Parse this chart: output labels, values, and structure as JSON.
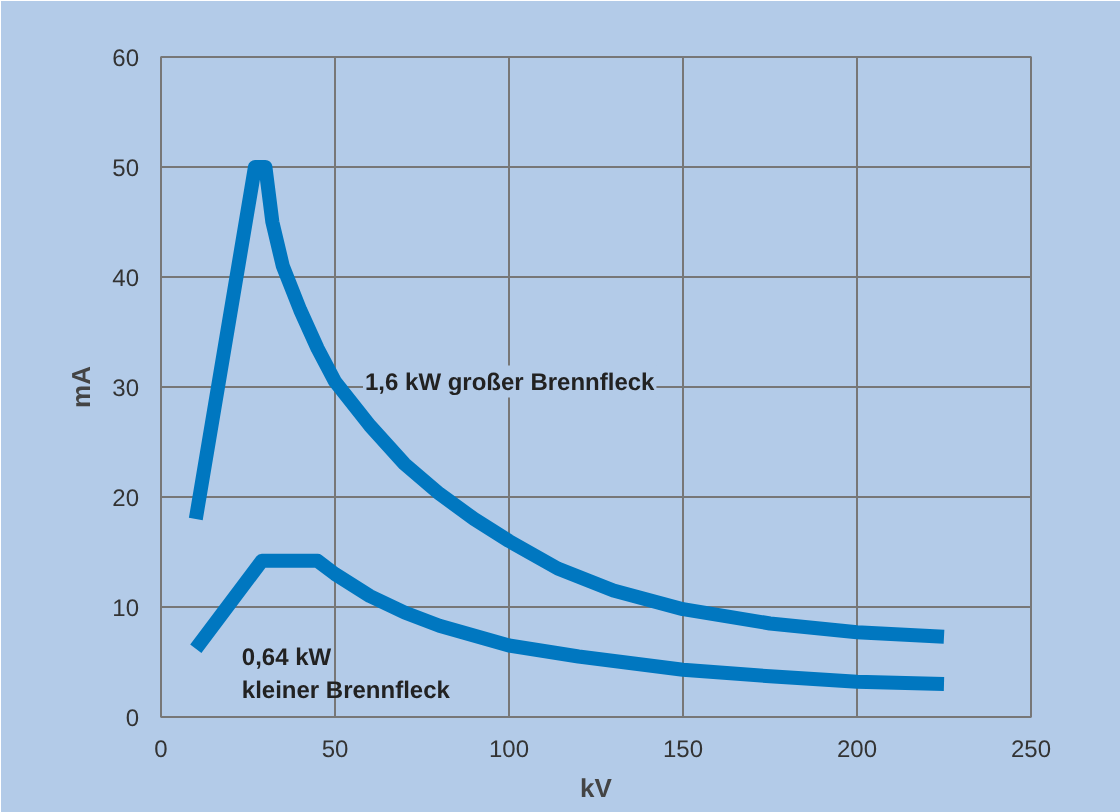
{
  "chart_data": {
    "type": "line",
    "xlabel": "kV",
    "ylabel": "mA",
    "xlim": [
      0,
      250
    ],
    "ylim": [
      0,
      60
    ],
    "xticks": [
      0,
      50,
      100,
      150,
      200,
      250
    ],
    "yticks": [
      0,
      10,
      20,
      30,
      40,
      50,
      60
    ],
    "grid": true,
    "line_style": "solid",
    "series": [
      {
        "name": "1,6 kW großer Brennfleck",
        "color": "#0077c0",
        "x": [
          10,
          27,
          30,
          32,
          35,
          40,
          45,
          50,
          60,
          70,
          80,
          90,
          100,
          114,
          130,
          150,
          175,
          200,
          225
        ],
        "values": [
          18,
          50,
          50,
          45,
          41,
          37,
          33.5,
          30.5,
          26.5,
          23,
          20.3,
          18,
          16,
          13.5,
          11.5,
          9.8,
          8.5,
          7.7,
          7.3
        ]
      },
      {
        "name": "0,64 kW\nkleiner Brennfleck",
        "color": "#0077c0",
        "x": [
          10,
          29,
          45,
          50,
          60,
          70,
          80,
          100,
          120,
          150,
          175,
          200,
          225
        ],
        "values": [
          6.2,
          14.2,
          14.2,
          13,
          11,
          9.5,
          8.3,
          6.5,
          5.5,
          4.3,
          3.7,
          3.2,
          3.0
        ]
      }
    ]
  }
}
